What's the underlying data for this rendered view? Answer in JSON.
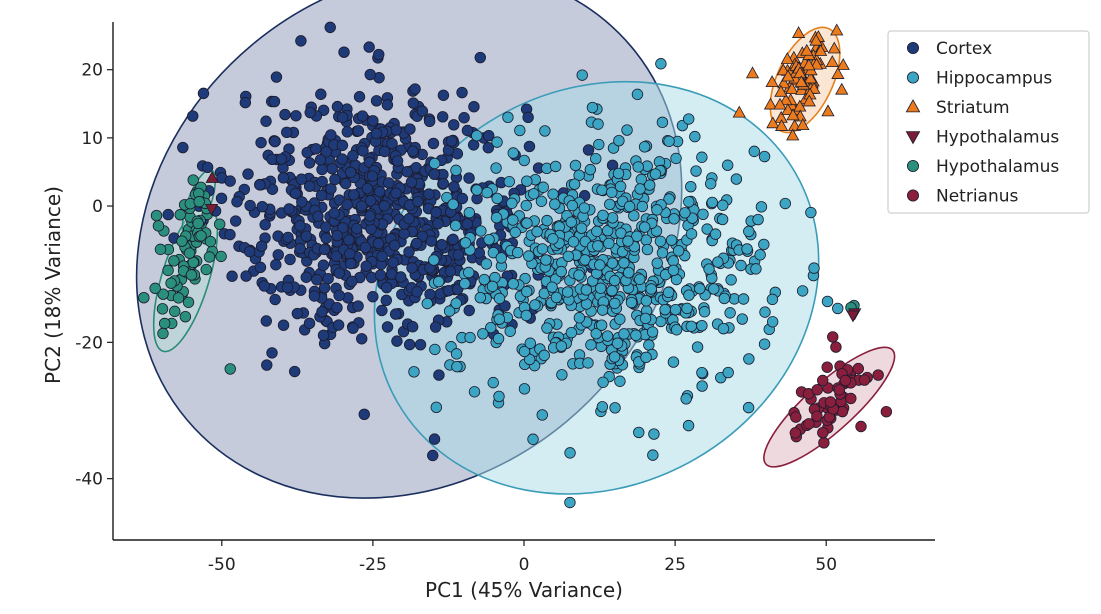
{
  "chart_data": {
    "type": "scatter",
    "title": "",
    "xlabel": "PC1 (45% Variance)",
    "ylabel": "PC2 (18% Variance)",
    "xlim": [
      -68,
      68
    ],
    "ylim": [
      -49,
      27
    ],
    "xticks": [
      -50,
      -25,
      0,
      25,
      50
    ],
    "yticks": [
      -40,
      -20,
      0,
      10,
      20
    ],
    "grid": false,
    "legend_position": "top-right",
    "series": [
      {
        "name": "Cortex",
        "marker": "circle",
        "color": "#1f3a78",
        "count": 750,
        "center": [
          -24,
          -1
        ],
        "spread": [
          12,
          9
        ],
        "ellipse": {
          "center": [
            -19,
            -4
          ],
          "rx": 48,
          "ry": 36,
          "angle_deg": -40,
          "fill": "#7f8cb0",
          "stroke": "#1b2f5e"
        },
        "extra_points": [
          [
            -43.5,
            9.3
          ],
          [
            -43.7,
            3.1
          ],
          [
            -43.3,
            -0.1
          ],
          [
            -47.7,
            -2.2
          ],
          [
            -48.3,
            -10.3
          ],
          [
            -14.8,
            -34.2
          ],
          [
            -15.1,
            -36.6
          ],
          [
            -30,
            13
          ],
          [
            -25,
            12.5
          ]
        ]
      },
      {
        "name": "Hippocampus",
        "marker": "circle",
        "color": "#3da5c4",
        "count": 700,
        "center": [
          14,
          -9
        ],
        "spread": [
          13,
          9
        ],
        "ellipse": {
          "center": [
            12,
            -12
          ],
          "rx": 38,
          "ry": 29,
          "angle_deg": -30,
          "fill": "#a9dce8",
          "stroke": "#3a9cb8"
        },
        "extra_points": [
          [
            7.6,
            -43.5
          ],
          [
            36.9,
            -6.3
          ],
          [
            24,
            9.5
          ],
          [
            33,
            -18
          ]
        ]
      },
      {
        "name": "Striatum",
        "marker": "triangle-up",
        "color": "#ec7b1e",
        "count": 80,
        "center": [
          46.5,
          18.5
        ],
        "spread": [
          2.0,
          3.2
        ],
        "ellipse": {
          "center": [
            46.5,
            18.5
          ],
          "rx": 4.6,
          "ry": 8.3,
          "angle_deg": 25,
          "fill": "#f6c89e",
          "stroke": "#e4811e"
        },
        "extra_points": []
      },
      {
        "name": "Hypothalamus",
        "marker": "triangle-down",
        "color": "#7a1c35",
        "count": 2,
        "center": [
          54.5,
          -15.8
        ],
        "spread": [
          0.3,
          0.3
        ],
        "ellipse": null,
        "extra_points": [
          [
            -51.7,
            -0.4
          ],
          [
            -51.6,
            4.1
          ]
        ]
      },
      {
        "name": "Hypothalamus",
        "marker": "circle",
        "color": "#2b8f7e",
        "count": 70,
        "center": [
          -56,
          -8
        ],
        "spread": [
          2.2,
          5.5
        ],
        "ellipse": {
          "center": [
            -56,
            -10.5
          ],
          "rx": 3.9,
          "ry": 11.3,
          "angle_deg": 17,
          "fill": "#b9e0d5",
          "stroke": "#2a8c78"
        },
        "extra_points": [
          [
            -60.8,
            -1.4
          ],
          [
            -48.6,
            -23.9
          ],
          [
            54.6,
            -14.6
          ],
          [
            54.1,
            -14.9
          ]
        ],
        "sub_cluster": {
          "center": [
            -54,
            1
          ],
          "spread": [
            0.8,
            1.8
          ],
          "count": 14,
          "ellipse": {
            "center": [
              -53.8,
              0.3
            ],
            "rx": 1.9,
            "ry": 5.3,
            "angle_deg": 20
          }
        }
      },
      {
        "name": "Netrianus",
        "marker": "circle",
        "color": "#8a1e3d",
        "count": 55,
        "center": [
          50.5,
          -28.5
        ],
        "spread": [
          2.4,
          4.2
        ],
        "ellipse": {
          "center": [
            50.5,
            -29.5
          ],
          "rx": 4.0,
          "ry": 12.5,
          "angle_deg": 48,
          "fill": "#d8aab6",
          "stroke": "#8a1e3d"
        },
        "extra_points": [
          [
            58.6,
            -24.8
          ]
        ]
      }
    ]
  }
}
